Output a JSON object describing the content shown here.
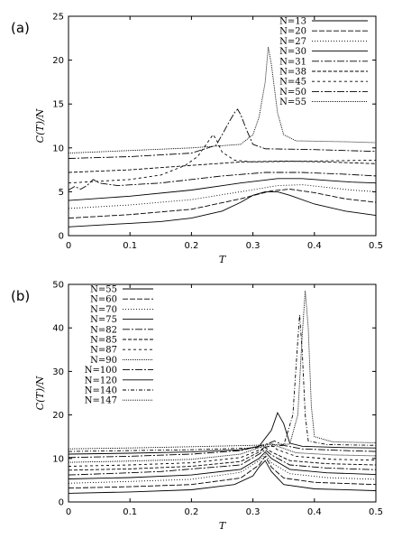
{
  "chart_data": [
    {
      "type": "line",
      "panel_label": "(a)",
      "xlabel": "T",
      "ylabel": "C(T)/N",
      "xlim": [
        0,
        0.5
      ],
      "ylim": [
        0,
        25
      ],
      "xticks": [
        "0",
        "0.1",
        "0.2",
        "0.3",
        "0.4",
        "0.5"
      ],
      "yticks": [
        "0",
        "5",
        "10",
        "15",
        "20",
        "25"
      ],
      "legend_position": "top-right",
      "series": [
        {
          "name": "N=13",
          "dash": "",
          "points": [
            [
              0.0,
              1.0
            ],
            [
              0.05,
              1.2
            ],
            [
              0.1,
              1.4
            ],
            [
              0.15,
              1.6
            ],
            [
              0.2,
              2.0
            ],
            [
              0.25,
              2.8
            ],
            [
              0.28,
              3.8
            ],
            [
              0.3,
              4.6
            ],
            [
              0.32,
              5.0
            ],
            [
              0.34,
              5.0
            ],
            [
              0.36,
              4.6
            ],
            [
              0.4,
              3.6
            ],
            [
              0.45,
              2.8
            ],
            [
              0.5,
              2.3
            ]
          ]
        },
        {
          "name": "N=20",
          "dash": "6,2",
          "points": [
            [
              0.0,
              2.0
            ],
            [
              0.1,
              2.4
            ],
            [
              0.2,
              3.0
            ],
            [
              0.28,
              4.2
            ],
            [
              0.33,
              5.1
            ],
            [
              0.36,
              5.3
            ],
            [
              0.4,
              4.9
            ],
            [
              0.45,
              4.2
            ],
            [
              0.5,
              3.8
            ]
          ]
        },
        {
          "name": "N=27",
          "dash": "1,2",
          "points": [
            [
              0.0,
              3.1
            ],
            [
              0.1,
              3.5
            ],
            [
              0.2,
              4.1
            ],
            [
              0.28,
              5.0
            ],
            [
              0.34,
              5.7
            ],
            [
              0.38,
              5.8
            ],
            [
              0.42,
              5.5
            ],
            [
              0.46,
              5.2
            ],
            [
              0.5,
              5.0
            ]
          ]
        },
        {
          "name": "N=30",
          "dash": "",
          "points": [
            [
              0.0,
              4.0
            ],
            [
              0.1,
              4.5
            ],
            [
              0.2,
              5.2
            ],
            [
              0.28,
              6.0
            ],
            [
              0.34,
              6.5
            ],
            [
              0.38,
              6.5
            ],
            [
              0.42,
              6.3
            ],
            [
              0.46,
              6.1
            ],
            [
              0.5,
              6.0
            ]
          ]
        },
        {
          "name": "N=31",
          "dash": "8,2,2,2",
          "points": [
            [
              0.0,
              5.2
            ],
            [
              0.01,
              5.6
            ],
            [
              0.02,
              5.3
            ],
            [
              0.03,
              5.7
            ],
            [
              0.04,
              6.4
            ],
            [
              0.05,
              6.0
            ],
            [
              0.08,
              5.7
            ],
            [
              0.15,
              6.0
            ],
            [
              0.25,
              6.8
            ],
            [
              0.32,
              7.2
            ],
            [
              0.38,
              7.2
            ],
            [
              0.45,
              7.0
            ],
            [
              0.5,
              6.8
            ]
          ]
        },
        {
          "name": "N=38",
          "dash": "4,2",
          "points": [
            [
              0.0,
              7.2
            ],
            [
              0.1,
              7.5
            ],
            [
              0.2,
              8.0
            ],
            [
              0.28,
              8.4
            ],
            [
              0.35,
              8.5
            ],
            [
              0.42,
              8.4
            ],
            [
              0.5,
              8.2
            ]
          ]
        },
        {
          "name": "N=45",
          "dash": "3,3",
          "points": [
            [
              0.0,
              6.0
            ],
            [
              0.1,
              6.4
            ],
            [
              0.15,
              6.9
            ],
            [
              0.19,
              8.0
            ],
            [
              0.21,
              9.0
            ],
            [
              0.22,
              10.0
            ],
            [
              0.23,
              11.0
            ],
            [
              0.235,
              11.5
            ],
            [
              0.24,
              11.0
            ],
            [
              0.25,
              9.5
            ],
            [
              0.27,
              8.6
            ],
            [
              0.3,
              8.4
            ],
            [
              0.4,
              8.5
            ],
            [
              0.5,
              8.6
            ]
          ]
        },
        {
          "name": "N=50",
          "dash": "8,2,2,2",
          "points": [
            [
              0.0,
              8.8
            ],
            [
              0.1,
              9.0
            ],
            [
              0.2,
              9.4
            ],
            [
              0.24,
              10.3
            ],
            [
              0.25,
              11.5
            ],
            [
              0.26,
              12.8
            ],
            [
              0.27,
              14.0
            ],
            [
              0.275,
              14.4
            ],
            [
              0.28,
              13.8
            ],
            [
              0.29,
              12.0
            ],
            [
              0.3,
              10.4
            ],
            [
              0.32,
              9.9
            ],
            [
              0.4,
              9.8
            ],
            [
              0.5,
              9.6
            ]
          ]
        },
        {
          "name": "N=55",
          "dash": "1,1",
          "points": [
            [
              0.0,
              9.4
            ],
            [
              0.1,
              9.7
            ],
            [
              0.2,
              10.0
            ],
            [
              0.28,
              10.4
            ],
            [
              0.3,
              11.5
            ],
            [
              0.31,
              13.5
            ],
            [
              0.32,
              17.5
            ],
            [
              0.325,
              21.5
            ],
            [
              0.33,
              19.5
            ],
            [
              0.34,
              14.0
            ],
            [
              0.35,
              11.5
            ],
            [
              0.37,
              10.8
            ],
            [
              0.45,
              10.7
            ],
            [
              0.5,
              10.6
            ]
          ]
        }
      ]
    },
    {
      "type": "line",
      "panel_label": "(b)",
      "xlabel": "T",
      "ylabel": "C(T)/N",
      "xlim": [
        0,
        0.5
      ],
      "ylim": [
        0,
        50
      ],
      "xticks": [
        "0",
        "0.1",
        "0.2",
        "0.3",
        "0.4",
        "0.5"
      ],
      "yticks": [
        "0",
        "10",
        "20",
        "30",
        "40",
        "50"
      ],
      "legend_position": "top-left",
      "series": [
        {
          "name": "N=55",
          "dash": "",
          "points": [
            [
              0.0,
              2.0
            ],
            [
              0.1,
              2.3
            ],
            [
              0.2,
              2.8
            ],
            [
              0.27,
              4.0
            ],
            [
              0.3,
              6.0
            ],
            [
              0.31,
              8.0
            ],
            [
              0.32,
              9.5
            ],
            [
              0.33,
              7.0
            ],
            [
              0.35,
              4.0
            ],
            [
              0.4,
              3.0
            ],
            [
              0.5,
              2.6
            ]
          ]
        },
        {
          "name": "N=60",
          "dash": "6,2",
          "points": [
            [
              0.0,
              3.2
            ],
            [
              0.1,
              3.5
            ],
            [
              0.2,
              4.0
            ],
            [
              0.28,
              5.5
            ],
            [
              0.31,
              8.5
            ],
            [
              0.32,
              10.5
            ],
            [
              0.33,
              8.0
            ],
            [
              0.35,
              5.5
            ],
            [
              0.4,
              4.5
            ],
            [
              0.5,
              4.0
            ]
          ]
        },
        {
          "name": "N=70",
          "dash": "1,2",
          "points": [
            [
              0.0,
              4.3
            ],
            [
              0.1,
              4.7
            ],
            [
              0.2,
              5.2
            ],
            [
              0.28,
              6.8
            ],
            [
              0.31,
              9.5
            ],
            [
              0.32,
              11.0
            ],
            [
              0.33,
              9.0
            ],
            [
              0.36,
              6.5
            ],
            [
              0.42,
              5.6
            ],
            [
              0.5,
              5.2
            ]
          ]
        },
        {
          "name": "N=75",
          "dash": "",
          "points": [
            [
              0.0,
              5.3
            ],
            [
              0.1,
              5.6
            ],
            [
              0.2,
              6.2
            ],
            [
              0.28,
              7.5
            ],
            [
              0.31,
              10.0
            ],
            [
              0.32,
              11.5
            ],
            [
              0.33,
              10.0
            ],
            [
              0.36,
              7.5
            ],
            [
              0.42,
              6.7
            ],
            [
              0.5,
              6.3
            ]
          ]
        },
        {
          "name": "N=82",
          "dash": "8,2,2,2",
          "points": [
            [
              0.0,
              6.2
            ],
            [
              0.08,
              6.6
            ],
            [
              0.15,
              7.0
            ],
            [
              0.22,
              7.8
            ],
            [
              0.28,
              8.5
            ],
            [
              0.31,
              11.0
            ],
            [
              0.32,
              12.0
            ],
            [
              0.33,
              10.8
            ],
            [
              0.36,
              8.5
            ],
            [
              0.42,
              7.8
            ],
            [
              0.5,
              7.4
            ]
          ]
        },
        {
          "name": "N=85",
          "dash": "4,2",
          "points": [
            [
              0.0,
              7.3
            ],
            [
              0.1,
              7.6
            ],
            [
              0.2,
              8.2
            ],
            [
              0.28,
              9.3
            ],
            [
              0.31,
              11.5
            ],
            [
              0.32,
              12.5
            ],
            [
              0.33,
              11.5
            ],
            [
              0.36,
              9.5
            ],
            [
              0.42,
              8.8
            ],
            [
              0.5,
              8.5
            ]
          ]
        },
        {
          "name": "N=87",
          "dash": "3,3",
          "points": [
            [
              0.0,
              8.2
            ],
            [
              0.1,
              8.5
            ],
            [
              0.2,
              9.0
            ],
            [
              0.28,
              10.2
            ],
            [
              0.32,
              12.5
            ],
            [
              0.33,
              13.0
            ],
            [
              0.34,
              12.0
            ],
            [
              0.37,
              10.5
            ],
            [
              0.43,
              9.8
            ],
            [
              0.5,
              9.6
            ]
          ]
        },
        {
          "name": "N=90",
          "dash": "1,1",
          "points": [
            [
              0.0,
              9.1
            ],
            [
              0.1,
              9.4
            ],
            [
              0.2,
              9.8
            ],
            [
              0.28,
              11.0
            ],
            [
              0.32,
              13.0
            ],
            [
              0.33,
              13.5
            ],
            [
              0.34,
              12.8
            ],
            [
              0.37,
              11.3
            ],
            [
              0.43,
              10.8
            ],
            [
              0.5,
              10.6
            ]
          ]
        },
        {
          "name": "N=100",
          "dash": "8,2,2,2",
          "points": [
            [
              0.0,
              10.2
            ],
            [
              0.1,
              10.5
            ],
            [
              0.2,
              11.0
            ],
            [
              0.28,
              11.8
            ],
            [
              0.32,
              13.2
            ],
            [
              0.335,
              14.0
            ],
            [
              0.35,
              13.0
            ],
            [
              0.38,
              12.2
            ],
            [
              0.45,
              11.8
            ],
            [
              0.5,
              11.6
            ]
          ]
        },
        {
          "name": "N=120",
          "dash": "",
          "points": [
            [
              0.0,
              11.0
            ],
            [
              0.1,
              11.2
            ],
            [
              0.2,
              11.5
            ],
            [
              0.28,
              12.0
            ],
            [
              0.31,
              12.8
            ],
            [
              0.33,
              16.5
            ],
            [
              0.34,
              20.5
            ],
            [
              0.35,
              18.0
            ],
            [
              0.36,
              13.5
            ],
            [
              0.38,
              12.8
            ],
            [
              0.45,
              12.5
            ],
            [
              0.5,
              12.4
            ]
          ]
        },
        {
          "name": "N=140",
          "dash": "4,2,1,2",
          "points": [
            [
              0.0,
              11.6
            ],
            [
              0.1,
              11.8
            ],
            [
              0.2,
              12.0
            ],
            [
              0.3,
              12.4
            ],
            [
              0.35,
              13.0
            ],
            [
              0.365,
              20.0
            ],
            [
              0.372,
              35.0
            ],
            [
              0.376,
              43.0
            ],
            [
              0.38,
              35.0
            ],
            [
              0.385,
              20.0
            ],
            [
              0.39,
              14.0
            ],
            [
              0.42,
              13.2
            ],
            [
              0.5,
              13.0
            ]
          ]
        },
        {
          "name": "N=147",
          "dash": "1,1",
          "points": [
            [
              0.0,
              12.2
            ],
            [
              0.1,
              12.4
            ],
            [
              0.2,
              12.7
            ],
            [
              0.3,
              13.0
            ],
            [
              0.36,
              13.3
            ],
            [
              0.373,
              20.0
            ],
            [
              0.38,
              38.0
            ],
            [
              0.385,
              48.5
            ],
            [
              0.39,
              40.0
            ],
            [
              0.395,
              22.0
            ],
            [
              0.4,
              15.0
            ],
            [
              0.43,
              13.8
            ],
            [
              0.5,
              13.6
            ]
          ]
        }
      ]
    }
  ]
}
